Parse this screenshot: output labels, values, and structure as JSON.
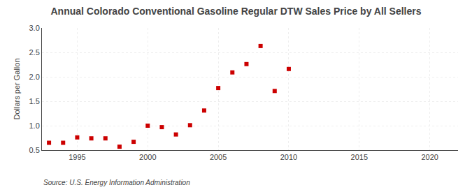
{
  "chart_data": {
    "type": "scatter",
    "title": "Annual Colorado Conventional Gasoline Regular DTW Sales Price by All Sellers",
    "ylabel": "Dollars per Gallon",
    "annotations": [
      "Source: U.S. Energy Information Administration"
    ],
    "x": [
      1993,
      1994,
      1995,
      1996,
      1997,
      1998,
      1999,
      2000,
      2001,
      2002,
      2003,
      2004,
      2005,
      2006,
      2007,
      2008,
      2009,
      2010
    ],
    "values": [
      0.65,
      0.65,
      0.76,
      0.74,
      0.74,
      0.57,
      0.67,
      1.0,
      0.97,
      0.82,
      1.01,
      1.31,
      1.77,
      2.09,
      2.26,
      2.63,
      1.71,
      2.16
    ],
    "color": "#cc0000",
    "marker": "square",
    "xlim": [
      1992.5,
      2022
    ],
    "ylim": [
      0.5,
      3.0
    ],
    "xticks": [
      1995,
      2000,
      2005,
      2010,
      2015,
      2020
    ],
    "yticks": [
      0.5,
      {
        "value": 1.0,
        "label": "1.0"
      },
      1.5,
      {
        "value": 2.0,
        "label": "2.0"
      },
      2.5,
      {
        "value": 3.0,
        "label": "3.0"
      }
    ],
    "grid": true
  }
}
